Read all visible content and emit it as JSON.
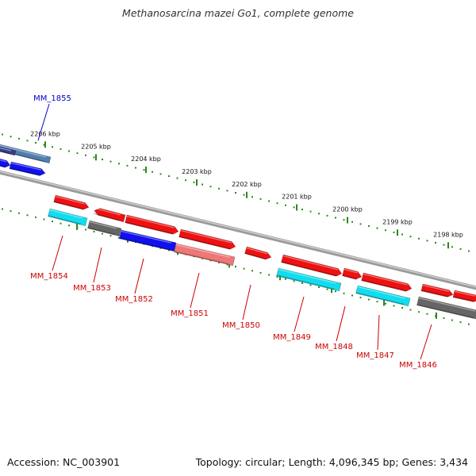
{
  "title": "Methanosarcina mazei Go1, complete genome",
  "footer": {
    "accession": "Accession: NC_003901",
    "summary": "Topology: circular; Length: 4,096,345 bp; Genes: 3,434"
  },
  "kbp_labels": [
    "2206 kbp",
    "2205 kbp",
    "2204 kbp",
    "2203 kbp",
    "2202 kbp",
    "2201 kbp",
    "2200 kbp",
    "2199 kbp",
    "2198 kbp"
  ],
  "colors": {
    "red": "#ee1111",
    "cyan": "#11ddee",
    "gray": "#666666",
    "blue": "#1111ee",
    "pink": "#ee7777",
    "steel": "#4f7fb0",
    "scale_green": "#2a8a1a",
    "label_red": "#cc0000",
    "label_blue": "#0000cc"
  },
  "gene_labels": [
    {
      "text": "MM_1855",
      "color": "blue"
    },
    {
      "text": "MM_1854",
      "color": "red"
    },
    {
      "text": "MM_1853",
      "color": "red"
    },
    {
      "text": "MM_1852",
      "color": "red"
    },
    {
      "text": "MM_1851",
      "color": "red"
    },
    {
      "text": "MM_1850",
      "color": "red"
    },
    {
      "text": "MM_1849",
      "color": "red"
    },
    {
      "text": "MM_1848",
      "color": "red"
    },
    {
      "text": "MM_1847",
      "color": "red"
    },
    {
      "text": "MM_1846",
      "color": "red"
    }
  ]
}
